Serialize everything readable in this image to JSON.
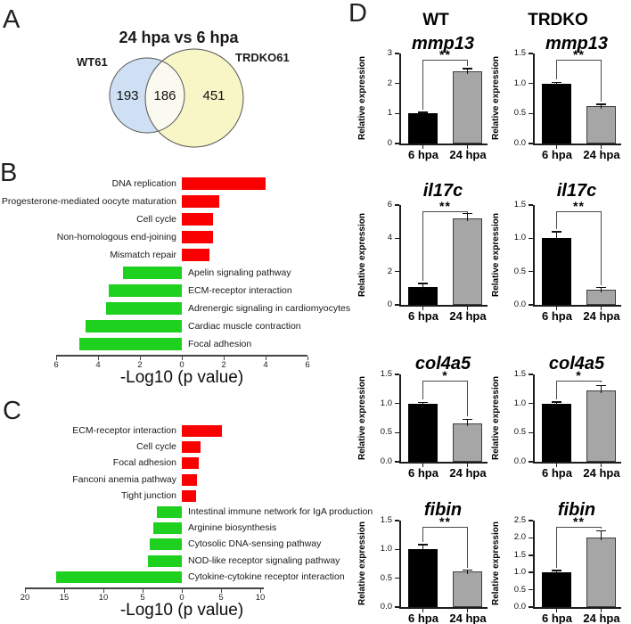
{
  "figure": {
    "panel_labels": [
      "A",
      "B",
      "C",
      "D"
    ],
    "d_headers": [
      "WT",
      "TRDKO"
    ]
  },
  "chart_data": [
    {
      "id": "venn-24hpa-vs-6hpa",
      "type": "venn",
      "title": "24 hpa vs 6 hpa",
      "sets": [
        {
          "label": "WT61",
          "unique": "193",
          "color": "#cfe0f4"
        },
        {
          "label": "TRDKO61",
          "unique": "451",
          "color": "#f8f6c6"
        }
      ],
      "overlap": "186",
      "overlap_color": "#fbfaf0",
      "outline_color": "#555555"
    },
    {
      "id": "kegg-pathways-b",
      "type": "bar",
      "orientation": "horizontal-diverging",
      "xlabel": "-Log10 (p value)",
      "tick_positions": [
        -6,
        -4,
        -2,
        0,
        2,
        4,
        6
      ],
      "tick_labels": [
        "6",
        "4",
        "2",
        "0",
        "2",
        "4",
        "6"
      ],
      "xlim": [
        -6,
        6
      ],
      "up": {
        "color": "#fa0000",
        "categories": [
          "DNA replication",
          "Progesterone-mediated oocyte maturation",
          "Cell cycle",
          "Non-homologous end-joining",
          "Mismatch repair"
        ],
        "values": [
          4.0,
          1.8,
          1.5,
          1.5,
          1.3
        ]
      },
      "down": {
        "color": "#1ed11e",
        "categories": [
          "Apelin signaling pathway",
          "ECM-receptor interaction",
          "Adrenergic signaling in cardiomyocytes",
          "Cardiac muscle contraction",
          "Focal adhesion"
        ],
        "values": [
          2.8,
          3.5,
          3.6,
          4.6,
          4.9
        ]
      }
    },
    {
      "id": "kegg-pathways-c",
      "type": "bar",
      "orientation": "horizontal-diverging",
      "xlabel": "-Log10 (p value)",
      "tick_positions": [
        -20,
        -15,
        -10,
        -5,
        0,
        5,
        10
      ],
      "tick_labels": [
        "20",
        "15",
        "10",
        "5",
        "0",
        "5",
        "10"
      ],
      "xlim": [
        -20,
        10.5
      ],
      "up": {
        "color": "#fa0000",
        "categories": [
          "ECM-receptor interaction",
          "Cell cycle",
          "Focal adhesion",
          "Fanconi anemia pathway",
          "Tight junction"
        ],
        "values": [
          5.1,
          2.4,
          2.2,
          1.9,
          1.8
        ]
      },
      "down": {
        "color": "#1ed11e",
        "categories": [
          "Intestinal immune network for IgA production",
          "Arginine biosynthesis",
          "Cytosolic DNA-sensing pathway",
          "NOD-like receptor signaling pathway",
          "Cytokine-cytokine receptor interaction"
        ],
        "values": [
          3.2,
          3.6,
          4.1,
          4.3,
          16.0
        ]
      }
    },
    {
      "id": "wt-mmp13",
      "type": "bar",
      "group": "WT",
      "gene": "mmp13",
      "ylabel": "Relative expression",
      "categories": [
        "6 hpa",
        "24 hpa"
      ],
      "values": [
        1.0,
        2.4
      ],
      "errors": [
        0.04,
        0.1
      ],
      "ymax": 3,
      "yticks": [
        0,
        1,
        2,
        3
      ],
      "ytick_labels": [
        "0",
        "1",
        "2",
        "3"
      ],
      "significance": "**",
      "bar_colors": [
        "#000000",
        "#a6a6a6"
      ]
    },
    {
      "id": "trdko-mmp13",
      "type": "bar",
      "group": "TRDKO",
      "gene": "mmp13",
      "ylabel": "Relative expression",
      "categories": [
        "6 hpa",
        "24 hpa"
      ],
      "values": [
        1.0,
        0.63
      ],
      "errors": [
        0.02,
        0.02
      ],
      "ymax": 1.5,
      "yticks": [
        0,
        0.5,
        1.0,
        1.5
      ],
      "ytick_labels": [
        "0.0",
        "0.5",
        "1.0",
        "1.5"
      ],
      "significance": "**",
      "bar_colors": [
        "#000000",
        "#a6a6a6"
      ]
    },
    {
      "id": "wt-il17c",
      "type": "bar",
      "group": "WT",
      "gene": "il17c",
      "ylabel": "Relative expression",
      "categories": [
        "6 hpa",
        "24 hpa"
      ],
      "values": [
        1.05,
        5.2
      ],
      "errors": [
        0.25,
        0.3
      ],
      "ymax": 6,
      "yticks": [
        0,
        2,
        4,
        6
      ],
      "ytick_labels": [
        "0",
        "2",
        "4",
        "6"
      ],
      "significance": "**",
      "bar_colors": [
        "#000000",
        "#a6a6a6"
      ]
    },
    {
      "id": "trdko-il17c",
      "type": "bar",
      "group": "TRDKO",
      "gene": "il17c",
      "ylabel": "Relative expression",
      "categories": [
        "6 hpa",
        "24 hpa"
      ],
      "values": [
        1.0,
        0.23
      ],
      "errors": [
        0.1,
        0.03
      ],
      "ymax": 1.5,
      "yticks": [
        0,
        0.5,
        1.0,
        1.5
      ],
      "ytick_labels": [
        "0.0",
        "0.5",
        "1.0",
        "1.5"
      ],
      "significance": "**",
      "bar_colors": [
        "#000000",
        "#a6a6a6"
      ]
    },
    {
      "id": "wt-col4a5",
      "type": "bar",
      "group": "WT",
      "gene": "col4a5",
      "ylabel": "Relative expression",
      "categories": [
        "6 hpa",
        "24 hpa"
      ],
      "values": [
        1.0,
        0.66
      ],
      "errors": [
        0.02,
        0.07
      ],
      "ymax": 1.5,
      "yticks": [
        0,
        0.5,
        1.0,
        1.5
      ],
      "ytick_labels": [
        "0.0",
        "0.5",
        "1.0",
        "1.5"
      ],
      "significance": "*",
      "bar_colors": [
        "#000000",
        "#a6a6a6"
      ]
    },
    {
      "id": "trdko-col4a5",
      "type": "bar",
      "group": "TRDKO",
      "gene": "col4a5",
      "ylabel": "Relative expression",
      "categories": [
        "6 hpa",
        "24 hpa"
      ],
      "values": [
        1.0,
        1.23
      ],
      "errors": [
        0.03,
        0.08
      ],
      "ymax": 1.5,
      "yticks": [
        0,
        0.5,
        1.0,
        1.5
      ],
      "ytick_labels": [
        "0.0",
        "0.5",
        "1.0",
        "1.5"
      ],
      "significance": "*",
      "bar_colors": [
        "#000000",
        "#a6a6a6"
      ]
    },
    {
      "id": "wt-fibin",
      "type": "bar",
      "group": "WT",
      "gene": "fibin",
      "ylabel": "Relative expression",
      "categories": [
        "6 hpa",
        "24 hpa"
      ],
      "values": [
        1.0,
        0.62
      ],
      "errors": [
        0.08,
        0.02
      ],
      "ymax": 1.5,
      "yticks": [
        0,
        0.5,
        1.0,
        1.5
      ],
      "ytick_labels": [
        "0.0",
        "0.5",
        "1.0",
        "1.5"
      ],
      "significance": "**",
      "bar_colors": [
        "#000000",
        "#a6a6a6"
      ]
    },
    {
      "id": "trdko-fibin",
      "type": "bar",
      "group": "TRDKO",
      "gene": "fibin",
      "ylabel": "Relative expression",
      "categories": [
        "6 hpa",
        "24 hpa"
      ],
      "values": [
        1.0,
        2.0
      ],
      "errors": [
        0.05,
        0.2
      ],
      "ymax": 2.5,
      "yticks": [
        0,
        0.5,
        1.0,
        1.5,
        2.0,
        2.5
      ],
      "ytick_labels": [
        "0.0",
        "0.5",
        "1.0",
        "1.5",
        "2.0",
        "2.5"
      ],
      "significance": "**",
      "bar_colors": [
        "#000000",
        "#a6a6a6"
      ]
    }
  ]
}
